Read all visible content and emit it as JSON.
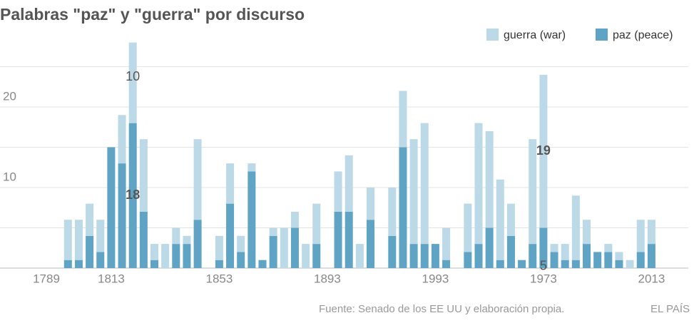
{
  "chart_data": {
    "type": "stacked_bar",
    "title": "Palabras \"paz\" y \"guerra\" por discurso",
    "source": "Fuente: Senado de los EE UU y elaboración propia.",
    "brand": "EL PAÍS",
    "categories": [
      "1789",
      null,
      null,
      null,
      null,
      null,
      "1813",
      null,
      null,
      null,
      null,
      null,
      null,
      null,
      null,
      null,
      "1853",
      null,
      null,
      null,
      null,
      null,
      null,
      null,
      null,
      null,
      "1893",
      null,
      null,
      null,
      null,
      null,
      null,
      null,
      null,
      null,
      "1993",
      null,
      null,
      null,
      null,
      null,
      null,
      null,
      null,
      null,
      "1973",
      null,
      null,
      null,
      null,
      null,
      null,
      null,
      null,
      null,
      "2013"
    ],
    "series": [
      {
        "name": "paz (peace)",
        "color": "#5fa4c5",
        "values": [
          null,
          null,
          1,
          1,
          4,
          2,
          15,
          13,
          18,
          7,
          1,
          0,
          3,
          3,
          6,
          null,
          1,
          8,
          2,
          12,
          1,
          4,
          0,
          5,
          0,
          3,
          null,
          7,
          7,
          0,
          6,
          null,
          4,
          15,
          3,
          3,
          3,
          1,
          null,
          2,
          3,
          5,
          1,
          4,
          1,
          3,
          5,
          2,
          1,
          1,
          3,
          2,
          2,
          1,
          0,
          2,
          3
        ],
        "value_labels": [
          null,
          null,
          null,
          null,
          null,
          null,
          null,
          null,
          "18",
          null,
          null,
          null,
          null,
          null,
          null,
          null,
          null,
          null,
          null,
          null,
          null,
          null,
          null,
          null,
          null,
          null,
          null,
          null,
          null,
          null,
          null,
          null,
          null,
          null,
          null,
          null,
          null,
          null,
          null,
          null,
          null,
          null,
          null,
          null,
          null,
          null,
          "5",
          null,
          null,
          null,
          null,
          null,
          null,
          null,
          null,
          null,
          null
        ]
      },
      {
        "name": "guerra (war)",
        "color": "#bcd9e7",
        "values": [
          null,
          null,
          5,
          5,
          4,
          4,
          0,
          6,
          10,
          9,
          2,
          3,
          2,
          1,
          10,
          null,
          3,
          5,
          2,
          1,
          0,
          1,
          5,
          2,
          3,
          5,
          null,
          5,
          7,
          3,
          4,
          null,
          6,
          7,
          13,
          15,
          0,
          4,
          null,
          6,
          15,
          12,
          10,
          4,
          0,
          13,
          19,
          1,
          2,
          8,
          3,
          0,
          1,
          1,
          1,
          4,
          3
        ],
        "value_labels": [
          null,
          null,
          null,
          null,
          null,
          null,
          null,
          null,
          "10",
          null,
          null,
          null,
          null,
          null,
          null,
          null,
          null,
          null,
          null,
          null,
          null,
          null,
          null,
          null,
          null,
          null,
          null,
          null,
          null,
          null,
          null,
          null,
          null,
          null,
          null,
          null,
          null,
          null,
          null,
          null,
          null,
          null,
          null,
          null,
          null,
          null,
          "19",
          null,
          null,
          null,
          null,
          null,
          null,
          null,
          null,
          null,
          null
        ]
      }
    ],
    "ylim": [
      0,
      28.5
    ],
    "yticks": [
      10,
      20
    ],
    "yminor": [
      5,
      15,
      25
    ],
    "grid": true
  }
}
